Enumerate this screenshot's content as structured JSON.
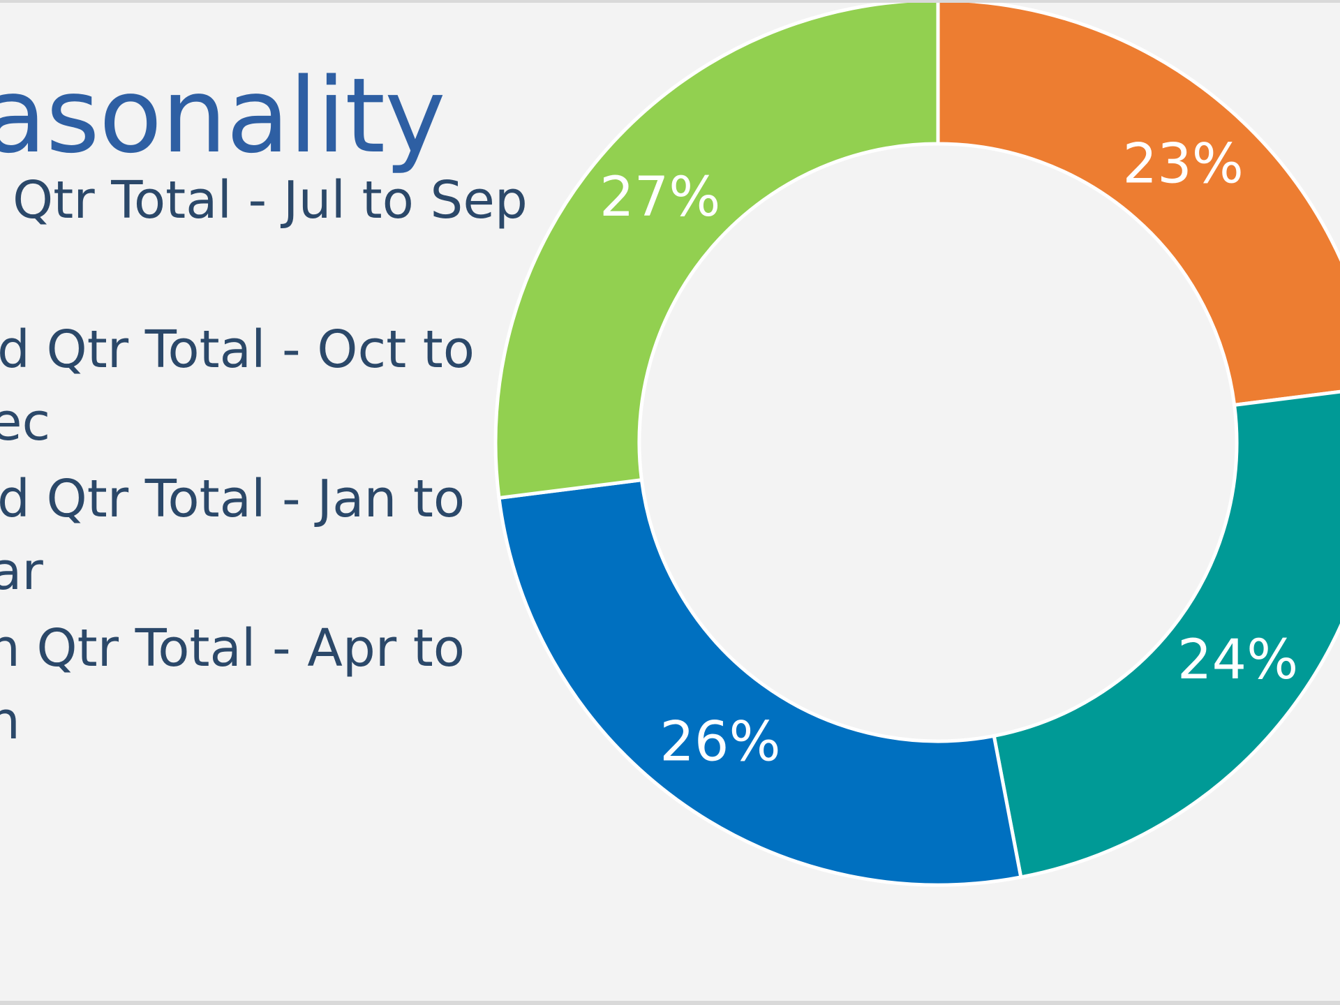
{
  "slide": {
    "title": "asonality",
    "legend_lines": [
      "Qtr Total - Jul to Sep",
      "d Qtr Total - Oct to",
      "ec",
      "d Qtr Total - Jan to",
      "ar",
      "n Qtr Total - Apr to",
      "n"
    ]
  },
  "chart_data": {
    "type": "pie",
    "style": "doughnut",
    "slices": [
      {
        "label": "Qtr Total - Jul to Sep",
        "value": 23,
        "display": "23%",
        "color": "#ed7d31"
      },
      {
        "label": "Qtr Total - Oct to Dec",
        "value": 24,
        "display": "24%",
        "color": "#009a96"
      },
      {
        "label": "Qtr Total - Jan to Mar",
        "value": 26,
        "display": "26%",
        "color": "#0070c0"
      },
      {
        "label": "Qtr Total - Apr to Jun",
        "value": 27,
        "display": "27%",
        "color": "#92d050"
      }
    ],
    "legend_position": "left"
  }
}
